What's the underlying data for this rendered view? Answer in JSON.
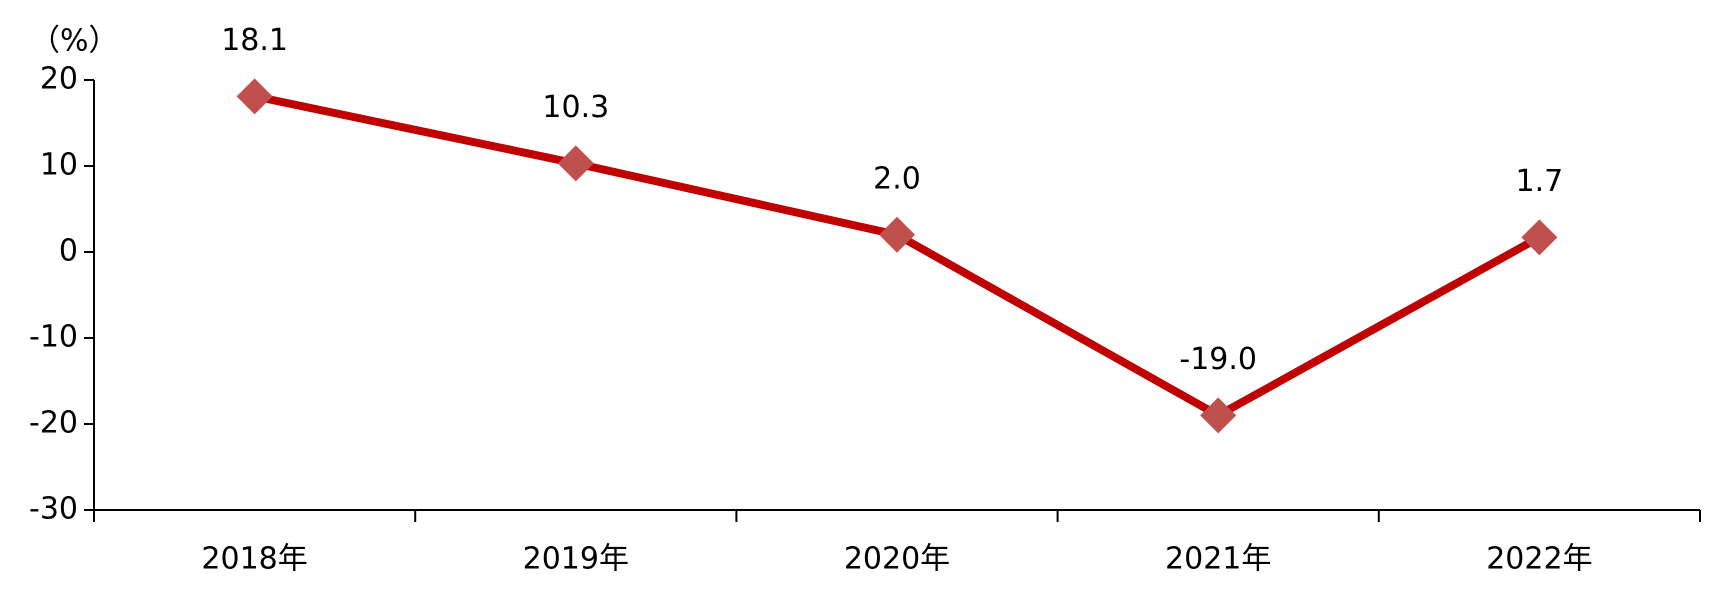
{
  "chart_data": {
    "type": "line",
    "y_label": "（%）",
    "categories": [
      "2018年",
      "2019年",
      "2020年",
      "2021年",
      "2022年"
    ],
    "values": [
      18.1,
      10.3,
      2.0,
      -19.0,
      1.7
    ],
    "value_labels": [
      "18.1",
      "10.3",
      "2.0",
      "-19.0",
      "1.7"
    ],
    "color": "#c00000",
    "marker_color": "#c0504d",
    "ylim": [
      -30,
      20
    ],
    "yticks": [
      -30,
      -20,
      -10,
      0,
      10,
      20
    ],
    "grid": false
  }
}
